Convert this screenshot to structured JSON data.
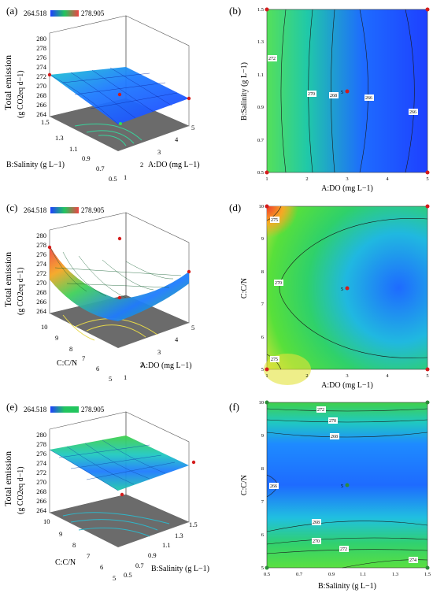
{
  "colors": {
    "low": "#1e40ff",
    "mid": "#22c55e",
    "high": "#ef4444",
    "pts": "#d41c1c",
    "floor": "#6b6b6b"
  },
  "panels": [
    {
      "letter": "(a)",
      "kind": "surface",
      "legend_min": "264.518",
      "legend_max": "278.905",
      "zlabel_1": "Total emission",
      "zlabel_2": "(g CO2eq d−1)",
      "axis_a": "A:DO (mg L−1)",
      "axis_b": "B:Salinity (g L−1)",
      "z_ticks": [
        "280",
        "278",
        "276",
        "274",
        "272",
        "270",
        "268",
        "266",
        "264"
      ],
      "a_ticks": [
        "1",
        "2",
        "3",
        "4",
        "5"
      ],
      "b_ticks": [
        "0.5",
        "0.7",
        "0.9",
        "1.1",
        "1.3",
        "1.5"
      ]
    },
    {
      "letter": "(b)",
      "kind": "contour",
      "x_label": "A:DO (mg L−1)",
      "y_label": "B:Salinity (g L−1)",
      "x_ticks": [
        "1",
        "2",
        "3",
        "4",
        "5"
      ],
      "y_ticks": [
        "0.5",
        "0.7",
        "0.9",
        "1.1",
        "1.3",
        "1.5"
      ],
      "contour_labels": [
        "272",
        "270",
        "268",
        "266",
        "266"
      ],
      "center_label": "5"
    },
    {
      "letter": "(c)",
      "kind": "surface",
      "legend_min": "264.518",
      "legend_max": "278.905",
      "zlabel_1": "Total emission",
      "zlabel_2": "(g CO2eq d−1)",
      "axis_a": "A:DO (mg L−1)",
      "axis_b": "C:C/N",
      "z_ticks": [
        "280",
        "278",
        "276",
        "274",
        "272",
        "270",
        "268",
        "266",
        "264"
      ],
      "a_ticks": [
        "1",
        "2",
        "3",
        "4",
        "5"
      ],
      "b_ticks": [
        "5",
        "6",
        "7",
        "8",
        "9",
        "10"
      ]
    },
    {
      "letter": "(d)",
      "kind": "contour",
      "x_label": "A:DO (mg L−1)",
      "y_label": "C:C/N",
      "x_ticks": [
        "1",
        "2",
        "3",
        "4",
        "5"
      ],
      "y_ticks": [
        "5",
        "6",
        "7",
        "8",
        "9",
        "10"
      ],
      "contour_labels": [
        "275",
        "270",
        "275"
      ],
      "center_label": "5"
    },
    {
      "letter": "(e)",
      "kind": "surface",
      "legend_min": "264.518",
      "legend_max": "278.905",
      "zlabel_1": "Total emission",
      "zlabel_2": "(g CO2eq d−1)",
      "axis_a": "B:Salinity (g L−1)",
      "axis_b": "C:C/N",
      "z_ticks": [
        "280",
        "278",
        "276",
        "274",
        "272",
        "270",
        "268",
        "266",
        "264"
      ],
      "a_ticks": [
        "0.5",
        "0.7",
        "0.9",
        "1.1",
        "1.3",
        "1.5"
      ],
      "b_ticks": [
        "5",
        "6",
        "7",
        "8",
        "9",
        "10"
      ]
    },
    {
      "letter": "(f)",
      "kind": "contour",
      "x_label": "B:Salinity (g L−1)",
      "y_label": "C:C/N",
      "x_ticks": [
        "0.5",
        "0.7",
        "0.9",
        "1.1",
        "1.3",
        "1.5"
      ],
      "y_ticks": [
        "5",
        "6",
        "7",
        "8",
        "9",
        "10"
      ],
      "contour_labels": [
        "272",
        "270",
        "268",
        "266",
        "268",
        "270",
        "272",
        "274"
      ],
      "center_label": "5"
    }
  ],
  "chart_data": [
    {
      "type": "heatmap",
      "title": "(a)",
      "xlabel": "A:DO",
      "ylabel": "B:Salinity",
      "zlabel": "Total emission",
      "zlim": [
        264,
        280
      ],
      "color_range": [
        264.518,
        278.905
      ],
      "x": [
        1,
        3,
        5
      ],
      "y": [
        0.5,
        1.0,
        1.5
      ],
      "z_rows_low_to_high_y": [
        [
          272,
          266,
          265
        ],
        [
          271,
          266,
          264.6
        ],
        [
          272,
          266,
          265
        ]
      ]
    },
    {
      "type": "heatmap",
      "title": "(b)",
      "xlabel": "A:DO",
      "ylabel": "B:Salinity",
      "contours": [
        272,
        270,
        268,
        266
      ],
      "xlim": [
        1,
        5
      ],
      "ylim": [
        0.5,
        1.5
      ],
      "design_points": [
        [
          1,
          0.5
        ],
        [
          5,
          0.5
        ],
        [
          1,
          1.5
        ],
        [
          5,
          1.5
        ],
        [
          3,
          1.0
        ]
      ]
    },
    {
      "type": "heatmap",
      "title": "(c)",
      "xlabel": "A:DO",
      "ylabel": "C:C/N",
      "zlabel": "Total emission",
      "zlim": [
        264,
        280
      ],
      "x": [
        1,
        3,
        5
      ],
      "y": [
        5,
        7.5,
        10
      ],
      "z_rows_low_to_high_y": [
        [
          277,
          270,
          270
        ],
        [
          270,
          265,
          266
        ],
        [
          278,
          272,
          271
        ]
      ]
    },
    {
      "type": "heatmap",
      "title": "(d)",
      "xlabel": "A:DO",
      "ylabel": "C:C/N",
      "contours": [
        275,
        270
      ],
      "xlim": [
        1,
        5
      ],
      "ylim": [
        5,
        10
      ],
      "design_points": [
        [
          1,
          5
        ],
        [
          5,
          5
        ],
        [
          1,
          10
        ],
        [
          5,
          10
        ],
        [
          3,
          7.5
        ]
      ]
    },
    {
      "type": "heatmap",
      "title": "(e)",
      "xlabel": "B:Salinity",
      "ylabel": "C:C/N",
      "zlabel": "Total emission",
      "zlim": [
        264,
        280
      ],
      "x": [
        0.5,
        1.0,
        1.5
      ],
      "y": [
        5,
        7.5,
        10
      ],
      "z_rows_low_to_high_y": [
        [
          274,
          270,
          275
        ],
        [
          266,
          266,
          267
        ],
        [
          272,
          271,
          272
        ]
      ]
    },
    {
      "type": "heatmap",
      "title": "(f)",
      "xlabel": "B:Salinity",
      "ylabel": "C:C/N",
      "contours": [
        274,
        272,
        270,
        268,
        266
      ],
      "xlim": [
        0.5,
        1.5
      ],
      "ylim": [
        5,
        10
      ],
      "design_points": [
        [
          0.5,
          5
        ],
        [
          1.5,
          5
        ],
        [
          0.5,
          10
        ],
        [
          1.5,
          10
        ],
        [
          1.0,
          7.5
        ]
      ]
    }
  ]
}
